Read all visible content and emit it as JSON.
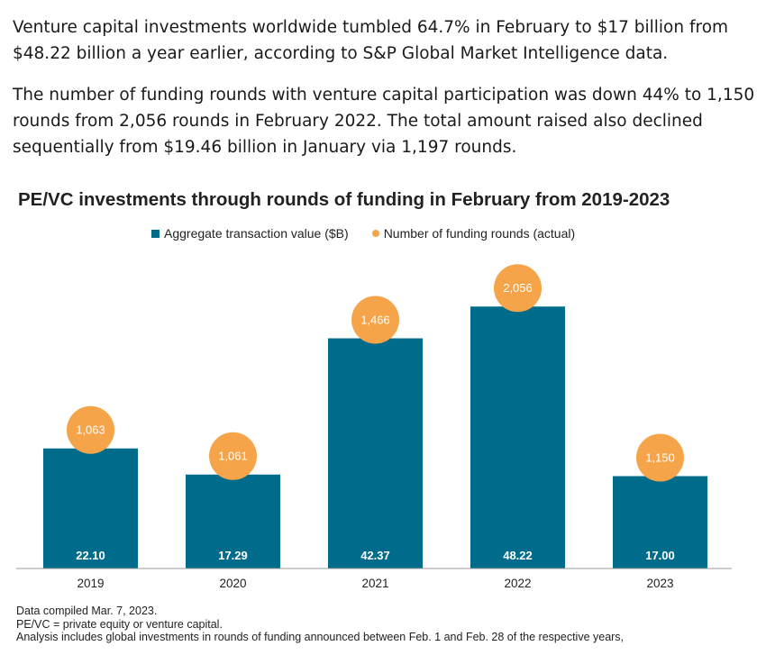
{
  "article": {
    "paragraph1": "Venture capital investments worldwide tumbled 64.7% in February to $17 billion from $48.22 billion a year earlier, according to S&P Global Market Intelligence data.",
    "paragraph2": "The number of funding rounds with venture capital participation was down 44% to 1,150 rounds from 2,056 rounds in February 2022. The total amount raised also declined sequentially from $19.46 billion in January via 1,197 rounds."
  },
  "colors": {
    "bar": "#006b8a",
    "bubble": "#f5a449",
    "axis": "#999999"
  },
  "chart_data": {
    "type": "bar",
    "title": "PE/VC investments through rounds of funding in February from 2019-2023",
    "categories": [
      "2019",
      "2020",
      "2021",
      "2022",
      "2023"
    ],
    "series": [
      {
        "name": "Aggregate transaction value ($B)",
        "type": "bar",
        "values": [
          22.1,
          17.29,
          42.37,
          48.22,
          17.0
        ],
        "labels": [
          "22.10",
          "17.29",
          "42.37",
          "48.22",
          "17.00"
        ]
      },
      {
        "name": "Number of funding rounds (actual)",
        "type": "scatter",
        "values": [
          1063,
          1061,
          1466,
          2056,
          1150
        ],
        "labels": [
          "1,063",
          "1,061",
          "1,466",
          "2,056",
          "1,150"
        ]
      }
    ],
    "legend_position": "top-center",
    "grid": false
  },
  "notes": [
    "Data compiled Mar. 7, 2023.",
    "PE/VC = private equity or venture capital.",
    "Analysis includes global investments in rounds of funding announced between Feb. 1 and Feb. 28 of the respective years,"
  ]
}
